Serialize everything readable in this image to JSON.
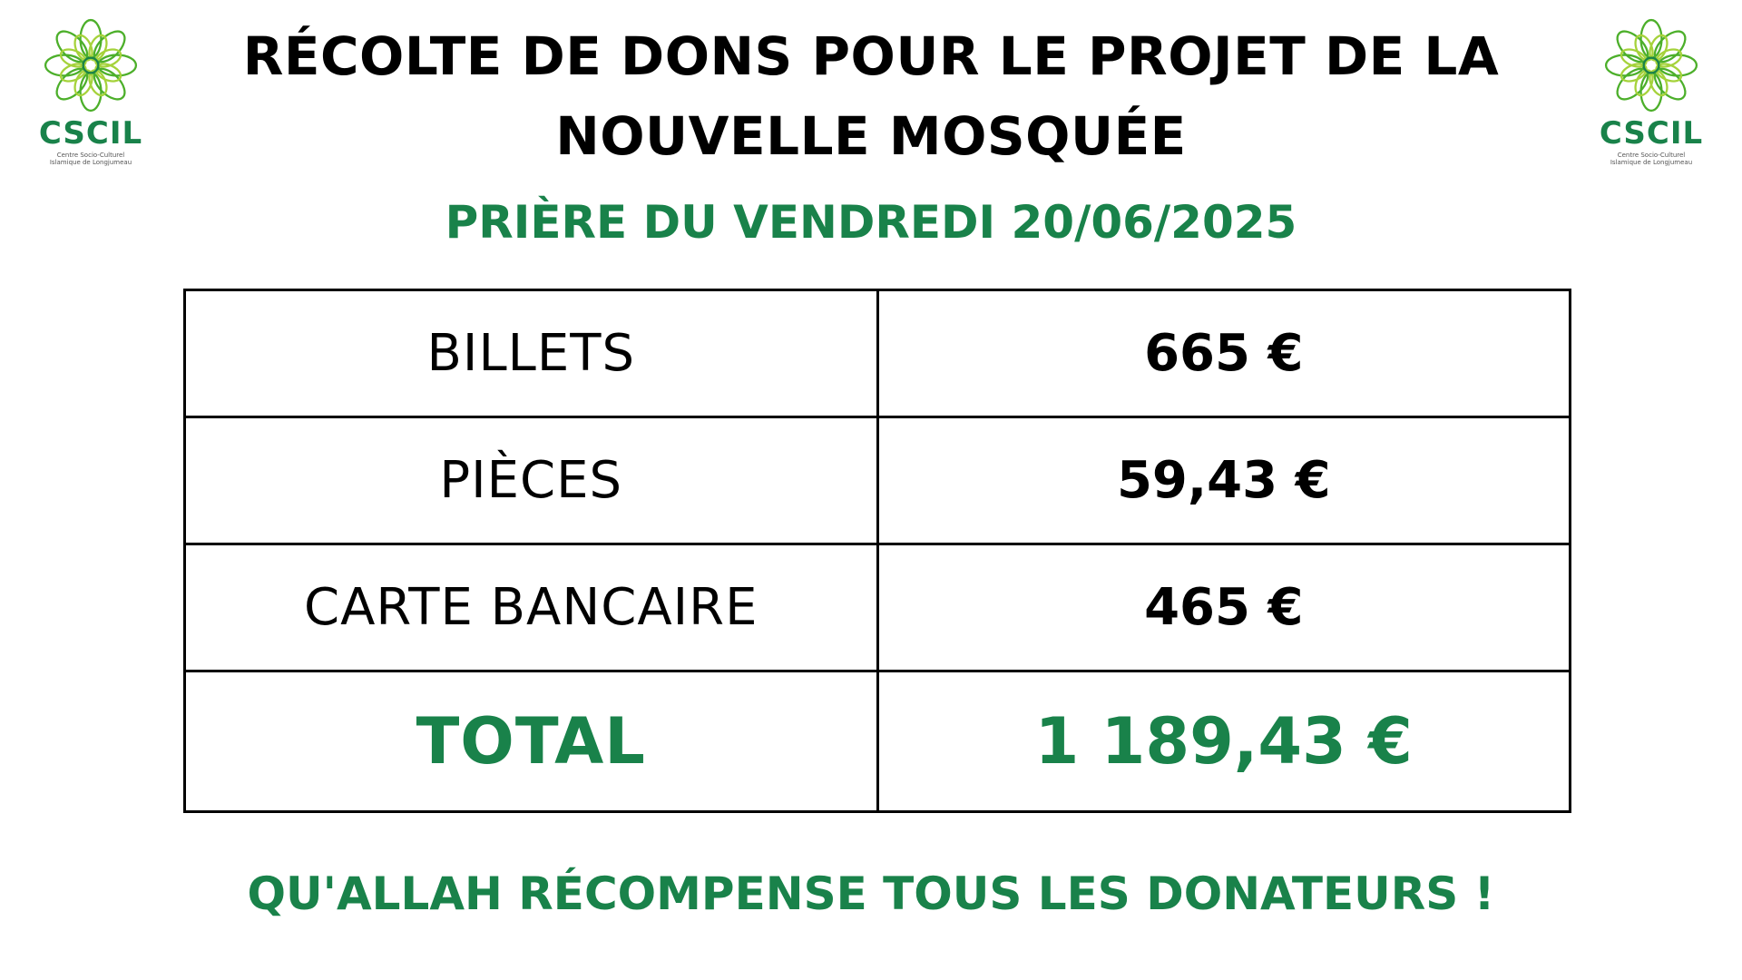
{
  "logo": {
    "name": "CSCIL",
    "subtitle": "Centre Socio-Culturel Islamique de Longjumeau",
    "icon": "mandala-flower-icon",
    "color": "#19824a"
  },
  "header": {
    "title_line1": "RÉCOLTE DE DONS POUR LE PROJET DE LA",
    "title_line2": "NOUVELLE MOSQUÉE",
    "subtitle": "PRIÈRE DU VENDREDI 20/06/2025"
  },
  "table": {
    "rows": [
      {
        "label": "BILLETS",
        "amount": "665 €"
      },
      {
        "label": "PIÈCES",
        "amount": "59,43 €"
      },
      {
        "label": "CARTE BANCAIRE",
        "amount": "465 €"
      }
    ],
    "total": {
      "label": "TOTAL",
      "amount": "1 189,43 €"
    }
  },
  "footer": {
    "message": "QU'ALLAH RÉCOMPENSE TOUS LES DONATEURS !"
  },
  "colors": {
    "accent": "#19824a",
    "text": "#000000",
    "background": "#ffffff"
  }
}
